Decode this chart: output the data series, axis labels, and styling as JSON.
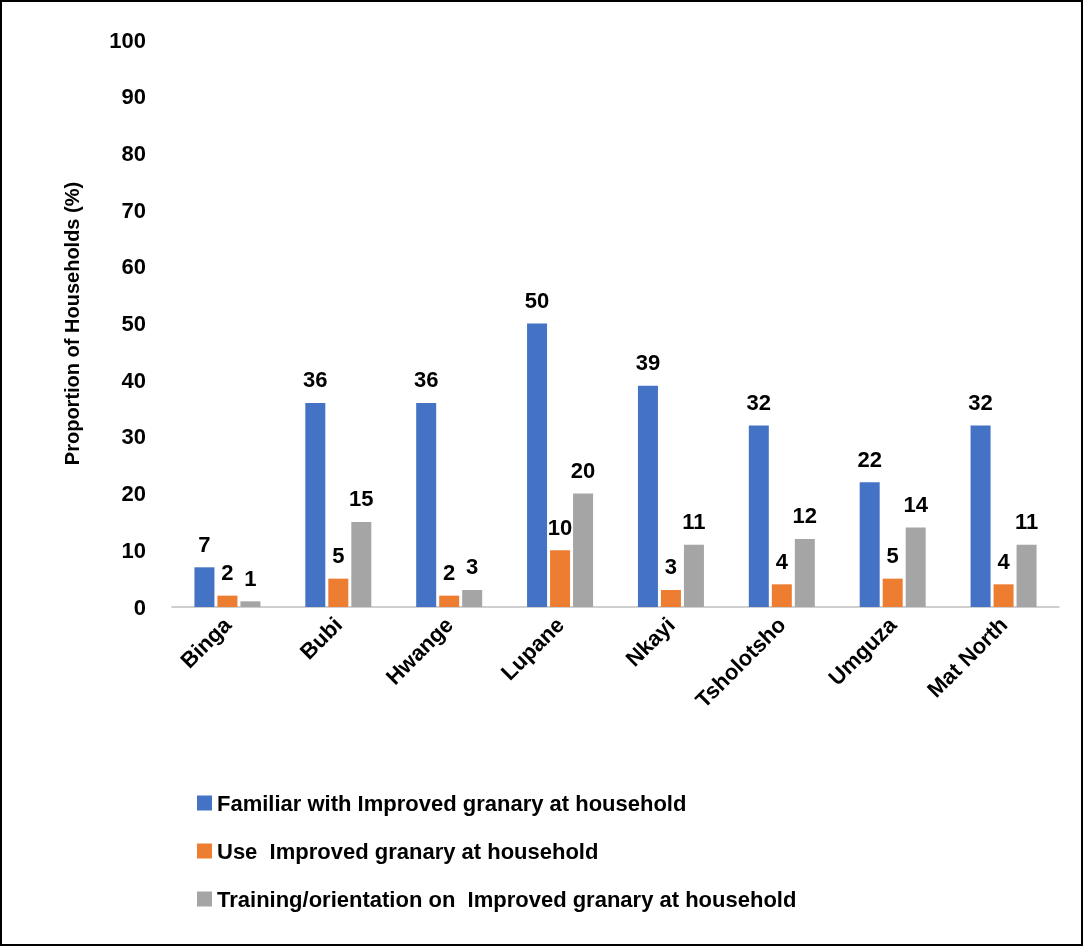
{
  "chart_data": {
    "type": "bar",
    "ylabel": "Proportion of Households (%)",
    "categories": [
      "Binga",
      "Bubi",
      "Hwange",
      "Lupane",
      "Nkayi",
      "Tsholotsho",
      "Umguza",
      "Mat North"
    ],
    "series": [
      {
        "name": "Familiar with Improved granary at household",
        "color": "#4472c4",
        "values": [
          7,
          36,
          36,
          50,
          39,
          32,
          22,
          32
        ]
      },
      {
        "name": "Use  Improved granary at household",
        "color": "#ed7d31",
        "values": [
          2,
          5,
          2,
          10,
          3,
          4,
          5,
          4
        ]
      },
      {
        "name": "Training/orientation on  Improved granary at household",
        "color": "#a5a5a5",
        "values": [
          1,
          15,
          3,
          20,
          11,
          12,
          14,
          11
        ]
      }
    ],
    "ylim": [
      0,
      100
    ],
    "yticks": [
      0,
      10,
      20,
      30,
      40,
      50,
      60,
      70,
      80,
      90,
      100
    ],
    "grid": false,
    "legend": "bottom",
    "data_labels": true
  }
}
